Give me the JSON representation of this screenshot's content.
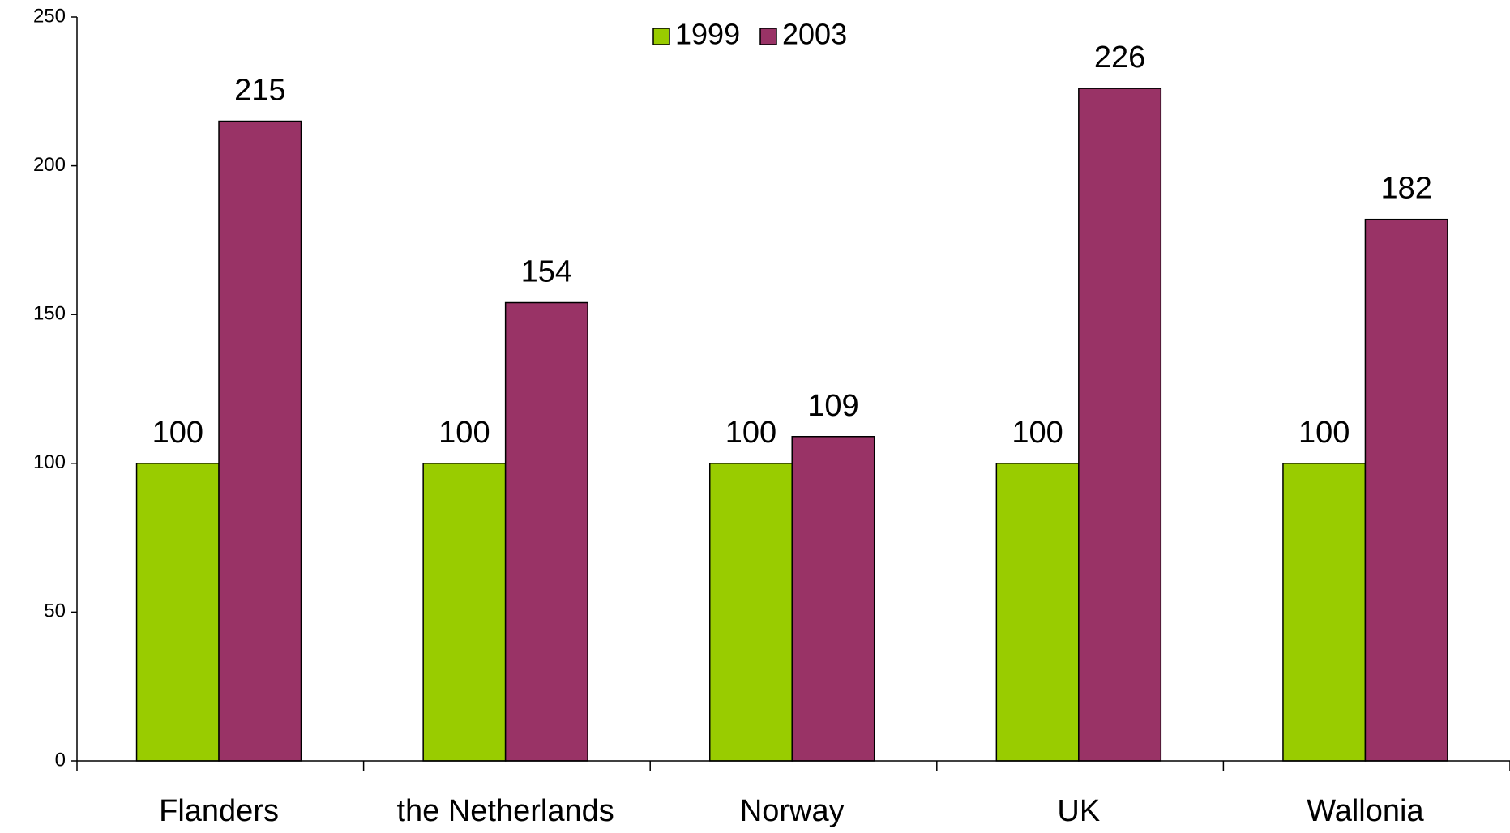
{
  "chart_data": {
    "type": "bar",
    "categories": [
      "Flanders",
      "the Netherlands",
      "Norway",
      "UK",
      "Wallonia"
    ],
    "series": [
      {
        "name": "1999",
        "color": "#99cc00",
        "values": [
          100,
          100,
          100,
          100,
          100
        ]
      },
      {
        "name": "2003",
        "color": "#993366",
        "values": [
          215,
          154,
          109,
          226,
          182
        ]
      }
    ],
    "ylim": [
      0,
      250
    ],
    "yticks": [
      0,
      50,
      100,
      150,
      200,
      250
    ],
    "grid": false,
    "legend": "top",
    "data_labels": true
  }
}
